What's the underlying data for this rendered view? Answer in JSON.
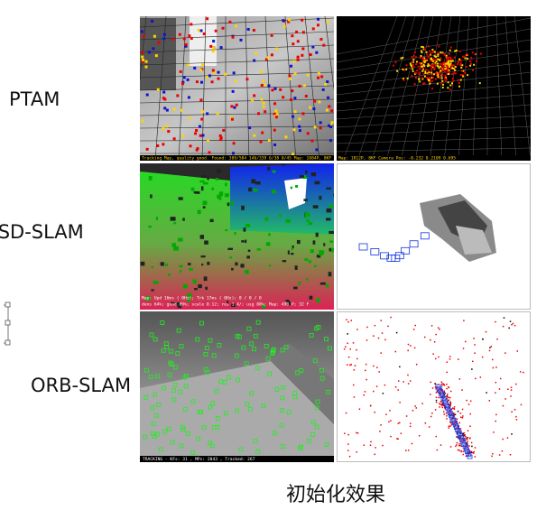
{
  "rows": [
    {
      "label": "PTAM",
      "left_status": "Tracking Map, quality good. Found: 309/584 146/339 6/38 0/45  Map: 1884P, 8KF",
      "right_status": "Map: 1812P, 8KF    Camera Pos: -0.232 0.2109 0.695"
    },
    {
      "label": "LSD-SLAM",
      "left_status": "Map: Upd 16ms ( 0Hz); Trk 17ms ( 0Hz); 0 / 0 / 0",
      "left_status_2": "dens 64%; good 89%; scale 0.12; res 1.4/; usg 88%; Map: 490 P; 32 F"
    },
    {
      "label": "ORB-SLAM",
      "left_status": "TRACKING  - KFs: 31 , MPs: 2043 , Tracked: 267"
    }
  ],
  "caption": "初始化效果"
}
